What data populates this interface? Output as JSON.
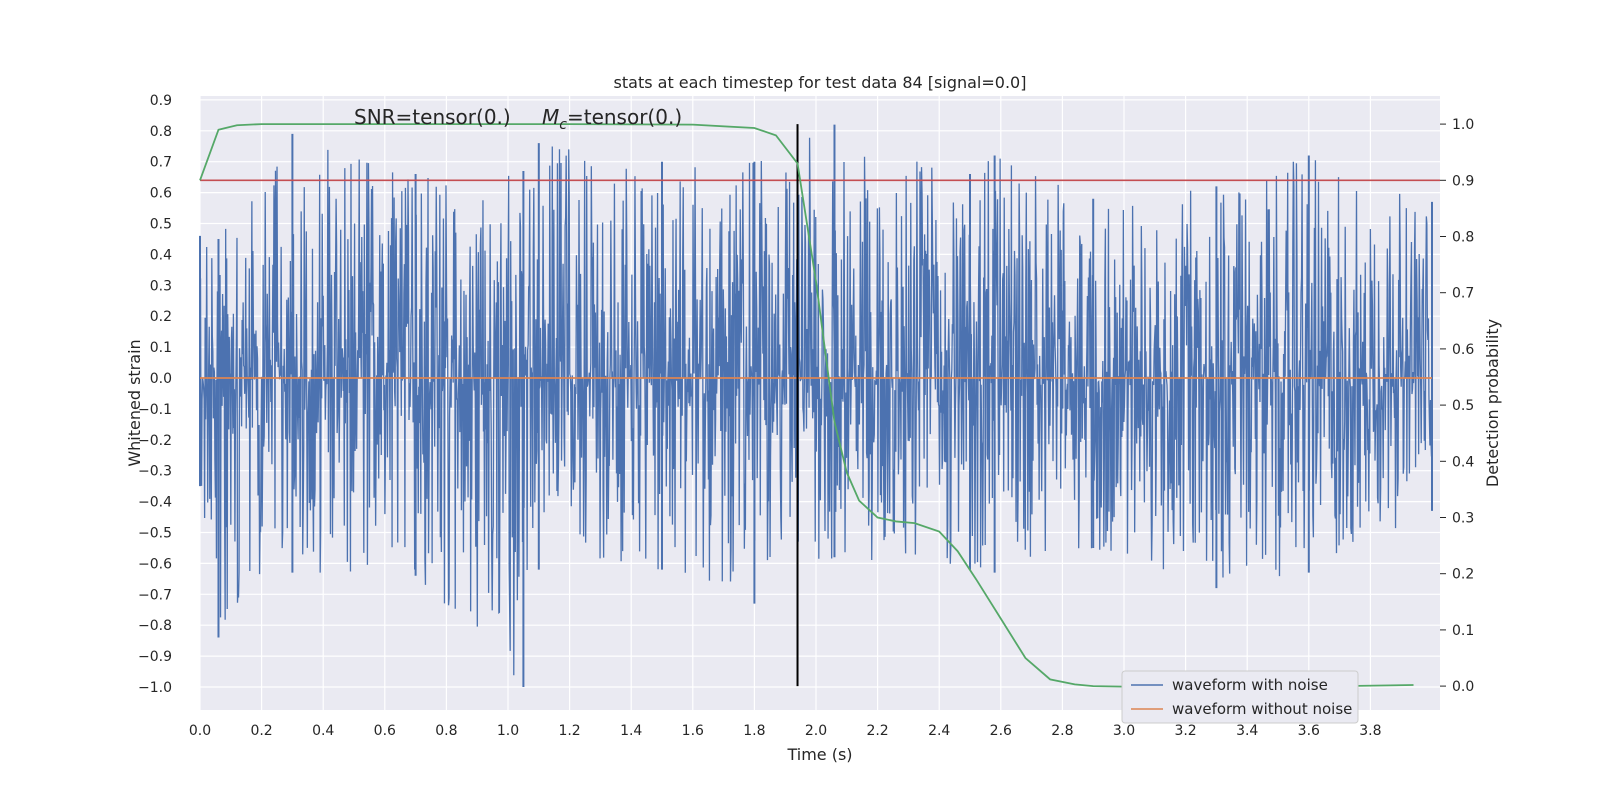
{
  "chart_data": {
    "type": "line",
    "title": "stats at each timestep for test data 84 [signal=0.0]",
    "xlabel": "Time (s)",
    "ylabel_left": "Whitened strain",
    "ylabel_right": "Detection probability",
    "annotation": {
      "snr_text": "SNR=tensor(0.)",
      "mc_prefix": "M",
      "mc_sub": "c",
      "mc_suffix": "=tensor(0.)"
    },
    "xlim": [
      0.0,
      4.0
    ],
    "ylim_left": [
      -1.09,
      0.91
    ],
    "ylim_right": [
      -0.047,
      1.047
    ],
    "x_ticks": [
      "0.0",
      "0.2",
      "0.4",
      "0.6",
      "0.8",
      "1.0",
      "1.2",
      "1.4",
      "1.6",
      "1.8",
      "2.0",
      "2.2",
      "2.4",
      "2.6",
      "2.8",
      "3.0",
      "3.2",
      "3.4",
      "3.6",
      "3.8"
    ],
    "y_left_ticks": [
      "0.9",
      "0.8",
      "0.7",
      "0.6",
      "0.5",
      "0.4",
      "0.3",
      "0.2",
      "0.1",
      "0.0",
      "−0.1",
      "−0.2",
      "−0.3",
      "−0.4",
      "−0.5",
      "−0.6",
      "−0.7",
      "−0.8",
      "−0.9",
      "−1.0"
    ],
    "y_right_ticks": [
      "1.0",
      "0.9",
      "0.8",
      "0.7",
      "0.6",
      "0.5",
      "0.4",
      "0.3",
      "0.2",
      "0.1",
      "0.0"
    ],
    "grid": true,
    "legend_position": "lower-right",
    "legend": [
      "waveform with noise",
      "waveform without noise"
    ],
    "colors": {
      "noise": "#4c72b0",
      "clean": "#dd8452",
      "probability": "#55a868",
      "threshold": "#c44e52",
      "marker": "#000000",
      "background": "#eaeaf2"
    },
    "threshold": 0.9,
    "marker_time": 1.94,
    "noise_envelope": {
      "x": [
        0.0,
        0.06,
        0.3,
        0.7,
        1.05,
        1.1,
        1.5,
        1.8,
        2.06,
        2.5,
        2.58,
        2.9,
        3.3,
        3.6,
        4.0
      ],
      "upper": [
        0.46,
        0.45,
        0.79,
        0.66,
        0.67,
        0.76,
        0.7,
        0.7,
        0.82,
        0.66,
        0.72,
        0.58,
        0.62,
        0.72,
        0.57
      ],
      "lower": [
        -0.35,
        -0.84,
        -0.63,
        -0.64,
        -1.0,
        -0.62,
        -0.62,
        -0.73,
        -0.58,
        -0.62,
        -0.63,
        -0.55,
        -0.68,
        -0.63,
        -0.43
      ]
    },
    "clean_waveform": {
      "x": [
        0.0,
        4.0
      ],
      "y": [
        0.0,
        0.0
      ]
    },
    "probability": {
      "x": [
        0.0,
        0.06,
        0.12,
        0.2,
        0.4,
        0.8,
        1.2,
        1.6,
        1.8,
        1.87,
        1.94,
        2.0,
        2.06,
        2.1,
        2.14,
        2.2,
        2.26,
        2.32,
        2.4,
        2.46,
        2.52,
        2.6,
        2.68,
        2.76,
        2.84,
        2.9,
        3.0,
        3.3,
        3.6,
        3.94
      ],
      "y": [
        0.9,
        0.99,
        0.998,
        1.0,
        1.0,
        1.0,
        1.0,
        0.999,
        0.993,
        0.98,
        0.93,
        0.72,
        0.47,
        0.38,
        0.33,
        0.3,
        0.293,
        0.29,
        0.275,
        0.24,
        0.19,
        0.12,
        0.05,
        0.012,
        0.003,
        0.0,
        -0.001,
        -0.001,
        -0.001,
        0.002
      ]
    }
  }
}
